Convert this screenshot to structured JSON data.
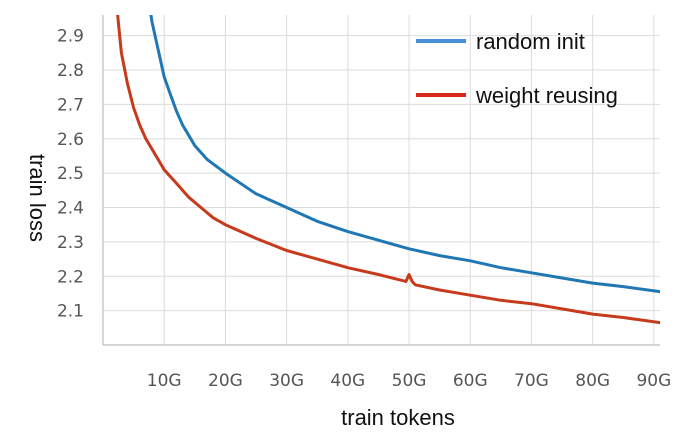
{
  "chart_data": {
    "type": "line",
    "title": "",
    "xlabel": "train tokens",
    "ylabel": "train loss",
    "x_ticks": [
      "10G",
      "20G",
      "30G",
      "40G",
      "50G",
      "60G",
      "70G",
      "80G",
      "90G"
    ],
    "y_ticks": [
      "2.1",
      "2.2",
      "2.3",
      "2.4",
      "2.5",
      "2.6",
      "2.7",
      "2.8",
      "2.9"
    ],
    "xlim": [
      0,
      91
    ],
    "ylim": [
      2.0,
      2.96
    ],
    "grid": true,
    "legend_position": "top-right",
    "series": [
      {
        "name": "random init",
        "color": "#1f77b4",
        "legend_color": "#4a90d9",
        "x": [
          7.5,
          8,
          9,
          10,
          11,
          12,
          13,
          14,
          15,
          17,
          20,
          25,
          30,
          35,
          40,
          45,
          50,
          55,
          60,
          65,
          70,
          75,
          80,
          85,
          91
        ],
        "y": [
          3.0,
          2.94,
          2.86,
          2.78,
          2.73,
          2.68,
          2.64,
          2.61,
          2.58,
          2.54,
          2.5,
          2.44,
          2.4,
          2.36,
          2.33,
          2.305,
          2.28,
          2.26,
          2.245,
          2.225,
          2.21,
          2.195,
          2.18,
          2.17,
          2.155
        ]
      },
      {
        "name": "weight reusing",
        "color": "#c73a1c",
        "legend_color": "#d9271b",
        "x": [
          2.2,
          2.5,
          3,
          4,
          5,
          6,
          7,
          8,
          9,
          10,
          12,
          14,
          16,
          18,
          20,
          25,
          30,
          35,
          40,
          45,
          49.5,
          50,
          50.5,
          51,
          55,
          60,
          65,
          70,
          75,
          80,
          85,
          91
        ],
        "y": [
          3.0,
          2.94,
          2.85,
          2.76,
          2.69,
          2.64,
          2.6,
          2.57,
          2.54,
          2.51,
          2.47,
          2.43,
          2.4,
          2.37,
          2.35,
          2.31,
          2.275,
          2.25,
          2.225,
          2.205,
          2.185,
          2.205,
          2.185,
          2.175,
          2.16,
          2.145,
          2.13,
          2.12,
          2.105,
          2.09,
          2.08,
          2.065
        ]
      }
    ]
  }
}
